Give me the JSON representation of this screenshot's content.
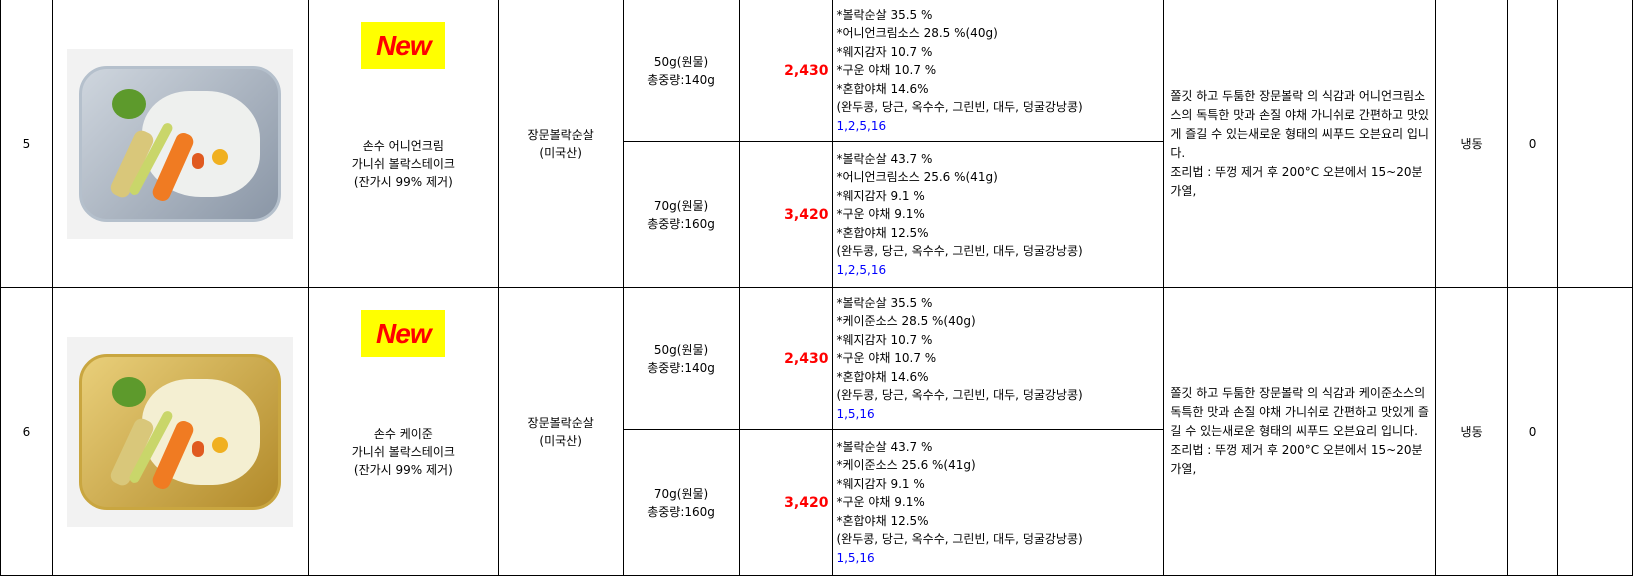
{
  "rows": [
    {
      "no": "5",
      "badge": "New",
      "name": [
        "손수 어니언크림",
        "가니쉬 볼락스테이크",
        "(잔가시 99% 제거)"
      ],
      "origin": [
        "장문볼락순살",
        "(미국산)"
      ],
      "variants": [
        {
          "weight": "50g(원물)",
          "total": "총중량:140g",
          "price": "2,430",
          "ingredients": [
            "*볼락순살  35.5 %",
            "*어니언크림소스 28.5 %(40g)",
            "*웨지감자  10.7 %",
            "*구운 야채  10.7 %",
            "*혼합야채  14.6%",
            "(완두콩, 당근, 옥수수, 그린빈, 대두, 덩굴강낭콩)"
          ],
          "allergens": "1,2,5,16"
        },
        {
          "weight": "70g(원물)",
          "total": "총중량:160g",
          "price": "3,420",
          "ingredients": [
            "*볼락순살  43.7 %",
            "*어니언크림소스 25.6 %(41g)",
            "*웨지감자  9.1 %",
            "*구운 야채  9.1%",
            "*혼합야채  12.5%",
            "(완두콩, 당근, 옥수수, 그린빈, 대두, 덩굴강낭콩)"
          ],
          "allergens": "1,2,5,16"
        }
      ],
      "description": " 쫄깃 하고 두툼한 장문볼락 의 식감과 어니언크림소스의 독특한 맛과 손질 야채 가니쉬로 간편하고 맛있게 즐길 수 있는새로운 형태의 씨푸드 오븐요리 입니다.",
      "recipe": " 조리법 : 뚜껑 제거 후  200°C 오븐에서 15~20분 가열,",
      "storage": "냉동",
      "qty": "0"
    },
    {
      "no": "6",
      "badge": "New",
      "name": [
        "손수 케이준",
        "가니쉬 볼락스테이크",
        "(잔가시 99% 제거)"
      ],
      "origin": [
        "장문볼락순살",
        "(미국산)"
      ],
      "variants": [
        {
          "weight": "50g(원물)",
          "total": "총중량:140g",
          "price": "2,430",
          "ingredients": [
            "*볼락순살  35.5 %",
            "*케이준소스 28.5 %(40g)",
            "*웨지감자  10.7 %",
            "*구운 야채  10.7 %",
            "*혼합야채  14.6%",
            "(완두콩, 당근, 옥수수, 그린빈, 대두, 덩굴강낭콩)"
          ],
          "allergens": "1,5,16"
        },
        {
          "weight": "70g(원물)",
          "total": "총중량:160g",
          "price": "3,420",
          "ingredients": [
            "*볼락순살  43.7 %",
            "*케이준소스 25.6 %(41g)",
            "*웨지감자  9.1 %",
            "*구운 야채  9.1%",
            "*혼합야채  12.5%",
            "(완두콩, 당근, 옥수수, 그린빈, 대두, 덩굴강낭콩)"
          ],
          "allergens": "1,5,16"
        }
      ],
      "description": " 쫄깃 하고 두툼한 장문볼락 의 식감과 케이준소스의 독특한 맛과 손질 야채 가니쉬로 간편하고 맛있게 즐길 수 있는새로운 형태의 씨푸드 오븐요리 입니다.",
      "recipe": " 조리법 : 뚜껑 제거 후  200°C 오븐에서 15~20분 가열,",
      "storage": "냉동",
      "qty": "0"
    }
  ],
  "colors": {
    "price": "#ff0000",
    "allergen": "#0000ff",
    "badge_bg": "#ffff00",
    "badge_text": "#ff0000"
  }
}
